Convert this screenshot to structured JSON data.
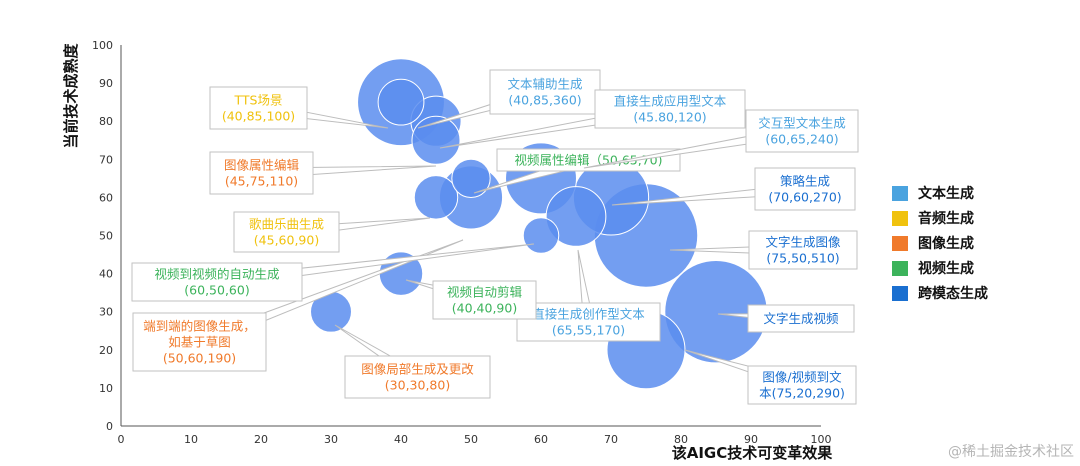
{
  "chart_data": {
    "type": "scatter",
    "title": "",
    "xlabel": "该AIGC技术可变革效果",
    "ylabel": "当前技术成熟度",
    "xlim": [
      0,
      100
    ],
    "ylim": [
      0,
      100
    ],
    "xticks": [
      "0",
      "10",
      "20",
      "30",
      "40",
      "50",
      "60",
      "70",
      "80",
      "90",
      "100"
    ],
    "yticks": [
      "0",
      "10",
      "20",
      "30",
      "40",
      "50",
      "60",
      "70",
      "80",
      "90",
      "100"
    ],
    "grid": false,
    "legend_position": "right",
    "categories": [
      {
        "name": "文本生成",
        "color": "#4aa3df"
      },
      {
        "name": "音频生成",
        "color": "#f0c20e"
      },
      {
        "name": "图像生成",
        "color": "#f07a2b"
      },
      {
        "name": "视频生成",
        "color": "#3cb35b"
      },
      {
        "name": "跨模态生成",
        "color": "#1a6fd0"
      }
    ],
    "bubble_color": "#5b8def",
    "points": [
      {
        "x": 40,
        "y": 85,
        "size": 360,
        "label": [
          "文本辅助生成",
          "(40,85,360)"
        ],
        "category": 0
      },
      {
        "x": 40,
        "y": 85,
        "size": 100,
        "label": [
          "TTS场景",
          "(40,85,100)"
        ],
        "category": 1
      },
      {
        "x": 45,
        "y": 80,
        "size": 120,
        "label": [
          "直接生成应用型文本",
          "(45.80,120)"
        ],
        "category": 0
      },
      {
        "x": 45,
        "y": 75,
        "size": 110,
        "label": [
          "图像属性编辑",
          "(45,75,110)"
        ],
        "category": 2
      },
      {
        "x": 50,
        "y": 65,
        "size": 70,
        "label": [
          "视频属性编辑（50,65,70)"
        ],
        "category": 3
      },
      {
        "x": 60,
        "y": 65,
        "size": 240,
        "label": [
          "交互型文本生成",
          "(60,65,240)"
        ],
        "category": 0
      },
      {
        "x": 70,
        "y": 60,
        "size": 270,
        "label": [
          "策略生成",
          "(70,60,270)"
        ],
        "category": 4
      },
      {
        "x": 45,
        "y": 60,
        "size": 90,
        "label": [
          "歌曲乐曲生成",
          "(45,60,90)"
        ],
        "category": 1
      },
      {
        "x": 50,
        "y": 60,
        "size": 190,
        "label": [
          "端到端的图像生成，",
          "如基于草图",
          "(50,60,190)"
        ],
        "category": 2
      },
      {
        "x": 60,
        "y": 50,
        "size": 60,
        "label": [
          "视频到视频的自动生成",
          "(60,50,60)"
        ],
        "category": 3
      },
      {
        "x": 65,
        "y": 55,
        "size": 170,
        "label": [
          "直接生成创作型文本",
          "(65,55,170)"
        ],
        "category": 0
      },
      {
        "x": 75,
        "y": 50,
        "size": 510,
        "label": [
          "文字生成图像",
          "(75,50,510)"
        ],
        "category": 4
      },
      {
        "x": 40,
        "y": 40,
        "size": 90,
        "label": [
          "视频自动剪辑",
          "(40,40,90)"
        ],
        "category": 3
      },
      {
        "x": 30,
        "y": 30,
        "size": 80,
        "label": [
          "图像局部生成及更改",
          "(30,30,80)"
        ],
        "category": 2
      },
      {
        "x": 85,
        "y": 30,
        "size": 500,
        "label": [
          "文字生成视频"
        ],
        "category": 4
      },
      {
        "x": 75,
        "y": 20,
        "size": 290,
        "label": [
          "图像/视频到文",
          "本(75,20,290)"
        ],
        "category": 4
      }
    ]
  },
  "watermark": "@稀土掘金技术社区"
}
